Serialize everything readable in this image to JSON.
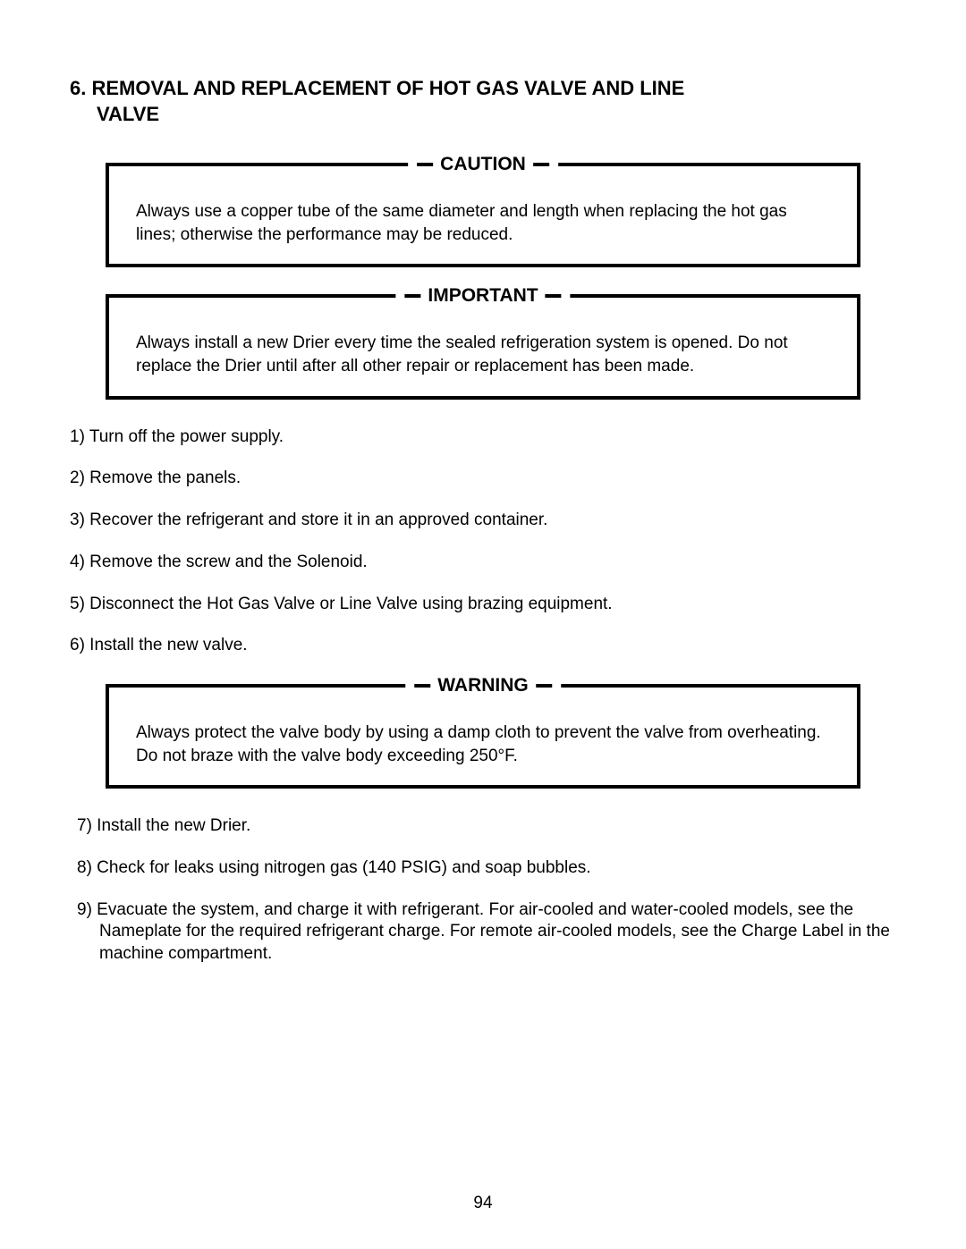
{
  "title_line1": "6. REMOVAL AND REPLACEMENT OF HOT GAS VALVE AND LINE",
  "title_line2": "VALVE",
  "caution": {
    "label": "CAUTION",
    "text": "Always use a copper tube of the same diameter and length when replacing the hot gas lines; otherwise the performance may be reduced."
  },
  "important": {
    "label": "IMPORTANT",
    "text": "Always install a new Drier every time the sealed refrigeration system is opened.  Do not replace the Drier until after all other repair or replacement has been made."
  },
  "steps_before": [
    "1) Turn off the power supply.",
    "2) Remove the panels.",
    "3) Recover the refrigerant and store it in an approved container.",
    "4) Remove the screw and the Solenoid.",
    "5) Disconnect the Hot Gas Valve or Line Valve using brazing equipment.",
    "6) Install the new valve."
  ],
  "warning": {
    "label": "WARNING",
    "text": "Always protect the valve body by using a damp cloth to prevent the valve from overheating.  Do not braze with the valve body exceeding 250°F."
  },
  "steps_after": [
    "7) Install the new Drier.",
    "8) Check for leaks using nitrogen gas (140 PSIG) and soap bubbles.",
    "9) Evacuate the system, and charge it with refrigerant.  For air-cooled and water-cooled models, see the Nameplate for the required refrigerant charge.  For remote air-cooled models, see the Charge Label in the machine compartment."
  ],
  "page_number": "94"
}
